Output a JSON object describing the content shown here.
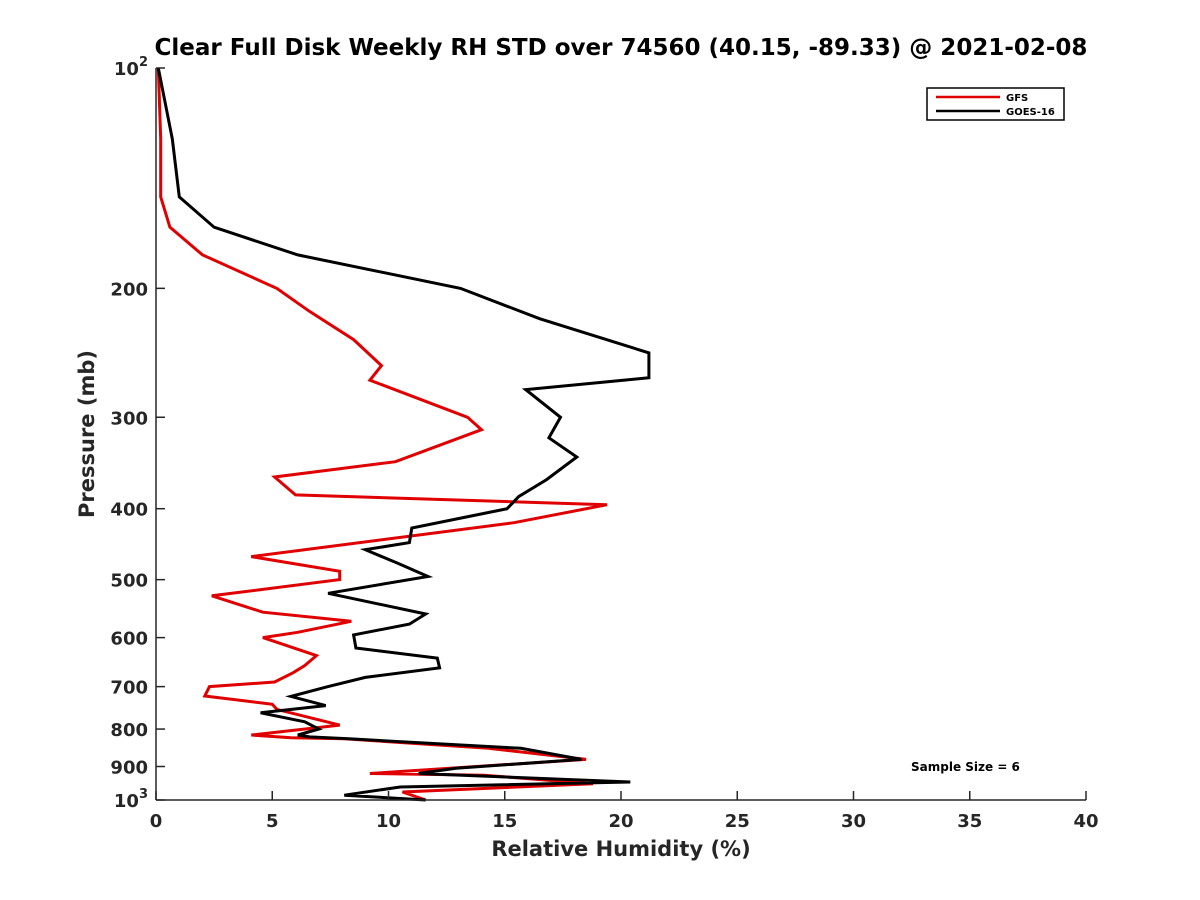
{
  "chart_data": {
    "type": "line",
    "title": "Clear Full Disk Weekly RH STD over 74560 (40.15, -89.33) @ 2021-02-08",
    "xlabel": "Relative Humidity (%)",
    "ylabel": "Pressure (mb)",
    "xlim": [
      0,
      40
    ],
    "ylim": [
      100,
      1000
    ],
    "y_scale": "log",
    "y_reversed": true,
    "x_ticks": [
      "0",
      "5",
      "10",
      "15",
      "20",
      "25",
      "30",
      "35",
      "40"
    ],
    "x_tick_values": [
      0,
      5,
      10,
      15,
      20,
      25,
      30,
      35,
      40
    ],
    "y_ticks": [
      {
        "value": 100,
        "base": "10",
        "exp": "2"
      },
      {
        "value": 200,
        "label": "200"
      },
      {
        "value": 300,
        "label": "300"
      },
      {
        "value": 400,
        "label": "400"
      },
      {
        "value": 500,
        "label": "500"
      },
      {
        "value": 600,
        "label": "600"
      },
      {
        "value": 700,
        "label": "700"
      },
      {
        "value": 800,
        "label": "800"
      },
      {
        "value": 900,
        "label": "900"
      },
      {
        "value": 1000,
        "base": "10",
        "exp": "3"
      }
    ],
    "grid": false,
    "legend": "top-right",
    "annotation": "Sample Size = 6",
    "series": [
      {
        "name": "GFS",
        "color": "#e00000",
        "points": [
          [
            0.1,
            100
          ],
          [
            0.2,
            125
          ],
          [
            0.2,
            150
          ],
          [
            0.6,
            165
          ],
          [
            2.0,
            180
          ],
          [
            5.2,
            200
          ],
          [
            6.6,
            215
          ],
          [
            8.5,
            235
          ],
          [
            9.7,
            255
          ],
          [
            9.2,
            267
          ],
          [
            13.4,
            300
          ],
          [
            14.0,
            312
          ],
          [
            10.3,
            345
          ],
          [
            5.1,
            362
          ],
          [
            6.0,
            383
          ],
          [
            19.4,
            395
          ],
          [
            15.4,
            418
          ],
          [
            4.1,
            465
          ],
          [
            7.9,
            487
          ],
          [
            7.9,
            500
          ],
          [
            2.4,
            526
          ],
          [
            4.6,
            554
          ],
          [
            8.4,
            570
          ],
          [
            6.1,
            590
          ],
          [
            4.6,
            600
          ],
          [
            6.9,
            635
          ],
          [
            6.4,
            655
          ],
          [
            5.9,
            670
          ],
          [
            5.1,
            690
          ],
          [
            2.3,
            700
          ],
          [
            2.1,
            721
          ],
          [
            5.0,
            740
          ],
          [
            5.2,
            752
          ],
          [
            7.9,
            790
          ],
          [
            4.1,
            815
          ],
          [
            5.8,
            822
          ],
          [
            8.1,
            825
          ],
          [
            14.3,
            850
          ],
          [
            18.5,
            880
          ],
          [
            9.2,
            920
          ],
          [
            14.1,
            925
          ],
          [
            18.8,
            950
          ],
          [
            10.6,
            975
          ],
          [
            11.6,
            1000
          ]
        ]
      },
      {
        "name": "GOES-16",
        "color": "#000000",
        "points": [
          [
            0.1,
            100
          ],
          [
            0.7,
            125
          ],
          [
            1.0,
            150
          ],
          [
            2.5,
            165
          ],
          [
            6.1,
            180
          ],
          [
            13.1,
            200
          ],
          [
            16.5,
            220
          ],
          [
            21.2,
            245
          ],
          [
            21.2,
            265
          ],
          [
            15.9,
            275
          ],
          [
            17.4,
            300
          ],
          [
            16.9,
            320
          ],
          [
            18.1,
            340
          ],
          [
            16.8,
            365
          ],
          [
            15.6,
            385
          ],
          [
            15.1,
            400
          ],
          [
            11.0,
            425
          ],
          [
            10.9,
            445
          ],
          [
            9.0,
            455
          ],
          [
            10.4,
            475
          ],
          [
            11.7,
            495
          ],
          [
            7.4,
            522
          ],
          [
            11.6,
            557
          ],
          [
            10.9,
            575
          ],
          [
            8.5,
            595
          ],
          [
            8.6,
            620
          ],
          [
            12.1,
            640
          ],
          [
            12.2,
            660
          ],
          [
            9.0,
            680
          ],
          [
            7.4,
            700
          ],
          [
            5.8,
            722
          ],
          [
            7.3,
            743
          ],
          [
            4.5,
            760
          ],
          [
            6.4,
            782
          ],
          [
            7.0,
            800
          ],
          [
            6.1,
            815
          ],
          [
            6.6,
            820
          ],
          [
            8.3,
            825
          ],
          [
            15.7,
            850
          ],
          [
            18.3,
            880
          ],
          [
            12.9,
            905
          ],
          [
            11.3,
            920
          ],
          [
            20.4,
            945
          ],
          [
            10.5,
            960
          ],
          [
            8.1,
            985
          ],
          [
            11.6,
            1000
          ]
        ]
      }
    ]
  }
}
